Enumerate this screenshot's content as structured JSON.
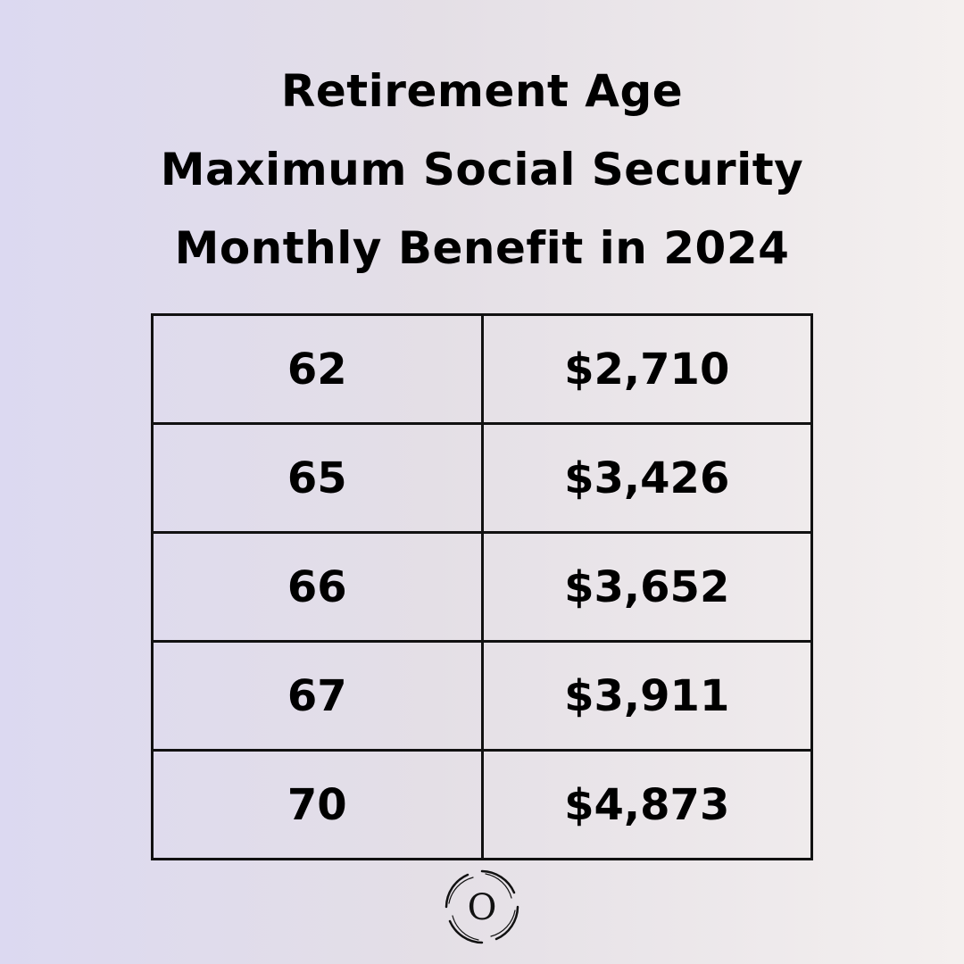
{
  "title": {
    "lines": [
      "Retirement Age",
      "Maximum Social Security",
      "Monthly Benefit in 2024"
    ]
  },
  "table": {
    "rows": [
      {
        "age": "62",
        "benefit": "$2,710"
      },
      {
        "age": "65",
        "benefit": "$3,426"
      },
      {
        "age": "66",
        "benefit": "$3,652"
      },
      {
        "age": "67",
        "benefit": "$3,911"
      },
      {
        "age": "70",
        "benefit": "$4,873"
      }
    ]
  },
  "logo": {
    "letter": "O",
    "icon": "swirl-circle-logo"
  }
}
